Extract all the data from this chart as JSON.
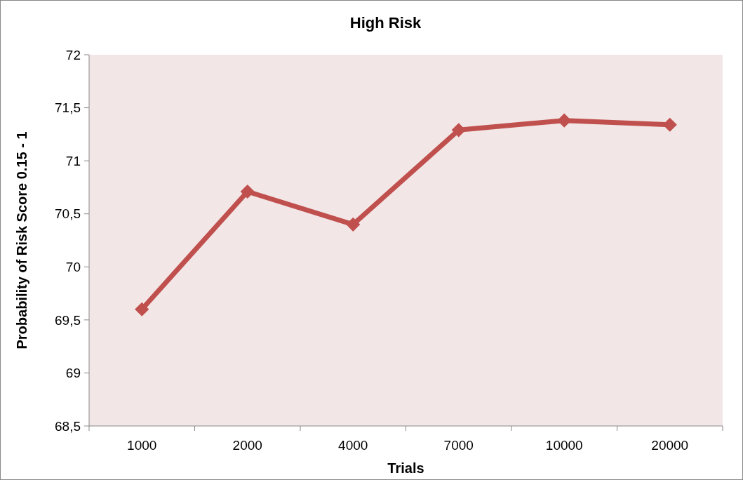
{
  "chart_data": {
    "type": "line",
    "title": "High Risk",
    "xlabel": "Trials",
    "ylabel": "Probability of Risk Score 0.15 - 1",
    "categories": [
      "1000",
      "2000",
      "4000",
      "7000",
      "10000",
      "20000"
    ],
    "series": [
      {
        "color": "#c0504d",
        "values": [
          69.6,
          70.71,
          70.4,
          71.29,
          71.38,
          71.34
        ]
      }
    ],
    "ylim": [
      68.5,
      72
    ],
    "yticks": [
      {
        "value": 68.5,
        "label": "68,5"
      },
      69,
      {
        "value": 69.5,
        "label": "69,5"
      },
      70,
      {
        "value": 70.5,
        "label": "70,5"
      },
      71,
      {
        "value": 71.5,
        "label": "71,5"
      },
      72
    ],
    "marker": "diamond",
    "line_style": "solid",
    "grid": false
  }
}
